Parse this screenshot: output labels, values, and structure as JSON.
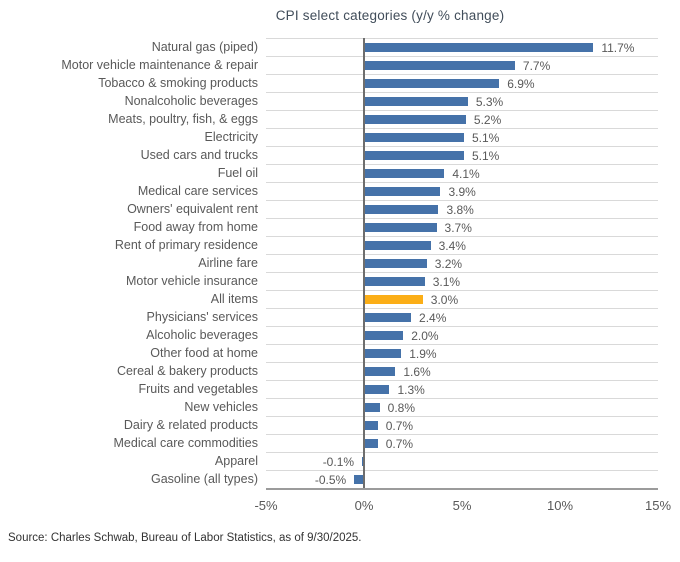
{
  "chart_data": {
    "type": "bar",
    "orientation": "horizontal",
    "title": "CPI select categories (y/y % change)",
    "categories": [
      "Natural gas (piped)",
      "Motor vehicle maintenance & repair",
      "Tobacco & smoking products",
      "Nonalcoholic beverages",
      "Meats, poultry, fish, & eggs",
      "Electricity",
      "Used cars and trucks",
      "Fuel oil",
      "Medical care services",
      "Owners' equivalent rent",
      "Food away from home",
      "Rent of primary residence",
      "Airline fare",
      "Motor vehicle insurance",
      "All items",
      "Physicians' services",
      "Alcoholic beverages",
      "Other food at home",
      "Cereal & bakery products",
      "Fruits and vegetables",
      "New vehicles",
      "Dairy & related products",
      "Medical care commodities",
      "Apparel",
      "Gasoline (all types)"
    ],
    "values": [
      11.7,
      7.7,
      6.9,
      5.3,
      5.2,
      5.1,
      5.1,
      4.1,
      3.9,
      3.8,
      3.7,
      3.4,
      3.2,
      3.1,
      3.0,
      2.4,
      2.0,
      1.9,
      1.6,
      1.3,
      0.8,
      0.7,
      0.7,
      -0.1,
      -0.5
    ],
    "value_labels": [
      "11.7%",
      "7.7%",
      "6.9%",
      "5.3%",
      "5.2%",
      "5.1%",
      "5.1%",
      "4.1%",
      "3.9%",
      "3.8%",
      "3.7%",
      "3.4%",
      "3.2%",
      "3.1%",
      "3.0%",
      "2.4%",
      "2.0%",
      "1.9%",
      "1.6%",
      "1.3%",
      "0.8%",
      "0.7%",
      "0.7%",
      "-0.1%",
      "-0.5%"
    ],
    "highlight_category": "All items",
    "xlabel": "",
    "ylabel": "",
    "xlim": [
      -5,
      15
    ],
    "x_ticks": [
      "-5%",
      "0%",
      "5%",
      "10%",
      "15%"
    ],
    "x_tick_values": [
      -5,
      0,
      5,
      10,
      15
    ],
    "grid": "category separator lines, light gray",
    "legend": "none",
    "colors": {
      "bar": "#4572a9",
      "highlight": "#fbae17",
      "gridline": "#d9d9d9",
      "zero_line": "#6e6e6e",
      "axis_line": "#9b9b9b",
      "label_text": "#595959",
      "title_text": "#414d5a"
    }
  },
  "source": "Source: Charles Schwab, Bureau of Labor Statistics, as of 9/30/2025."
}
